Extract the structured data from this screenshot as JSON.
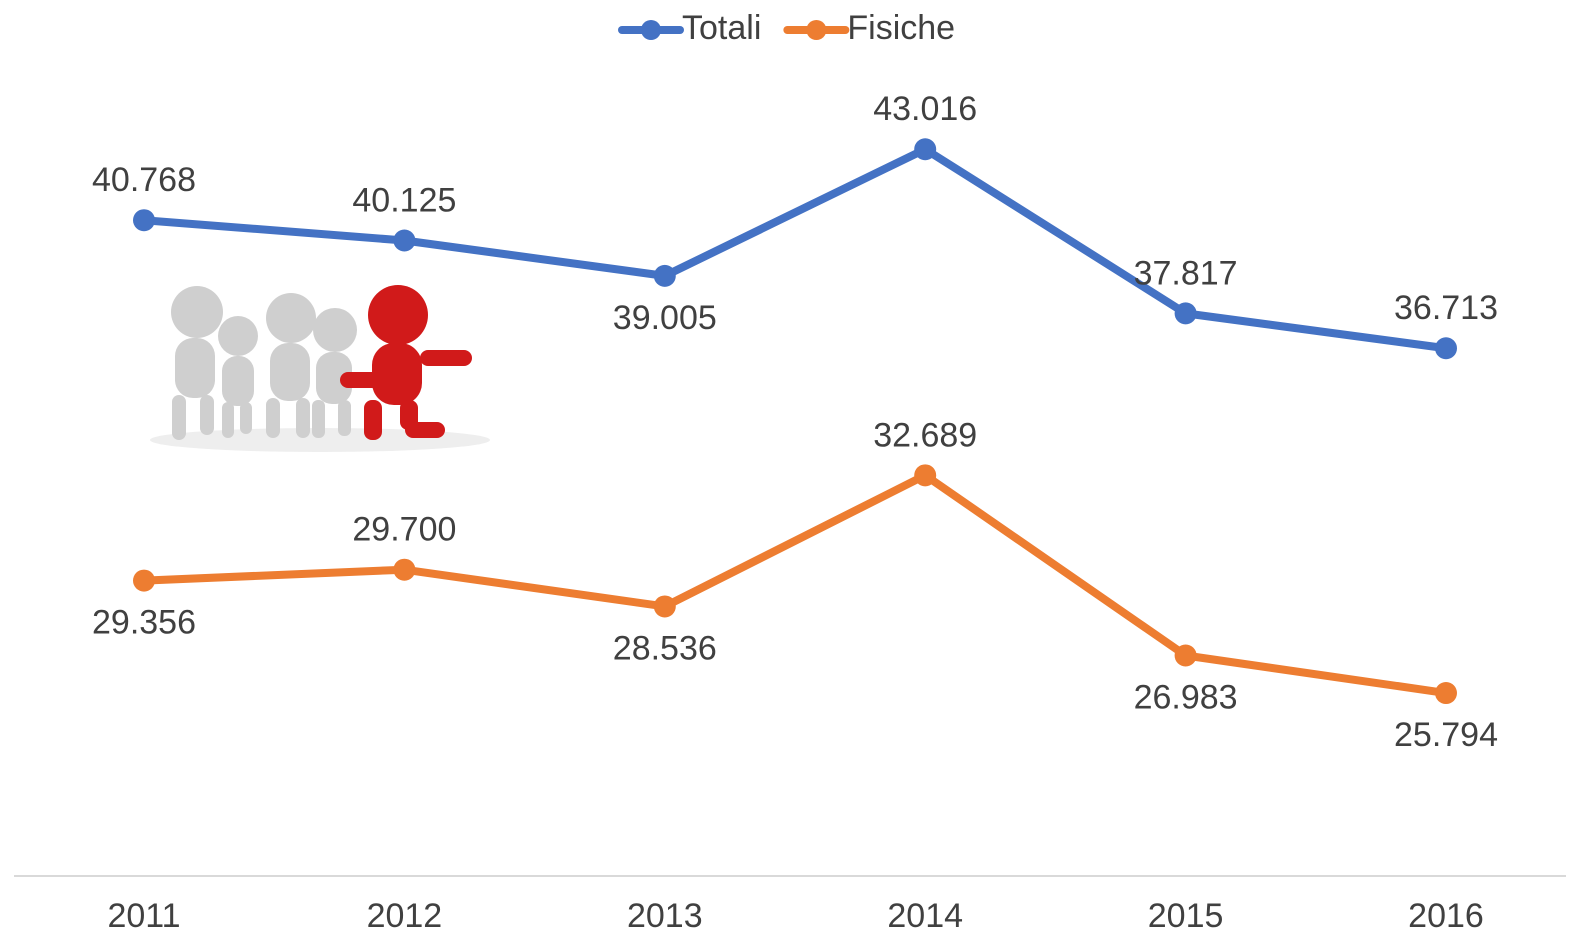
{
  "chart_data": {
    "type": "line",
    "categories": [
      "2011",
      "2012",
      "2013",
      "2014",
      "2015",
      "2016"
    ],
    "series": [
      {
        "name": "Totali",
        "color": "#4472c4",
        "values": [
          40768,
          40125,
          39005,
          43016,
          37817,
          36713
        ],
        "value_labels": [
          "40.768",
          "40.125",
          "39.005",
          "43.016",
          "37.817",
          "36.713"
        ]
      },
      {
        "name": "Fisiche",
        "color": "#ed7d31",
        "values": [
          29356,
          29700,
          28536,
          32689,
          26983,
          25794
        ],
        "value_labels": [
          "29.356",
          "29.700",
          "28.536",
          "32.689",
          "26.983",
          "25.794"
        ]
      }
    ],
    "ylim": [
      20000,
      46000
    ],
    "legend": "top"
  }
}
